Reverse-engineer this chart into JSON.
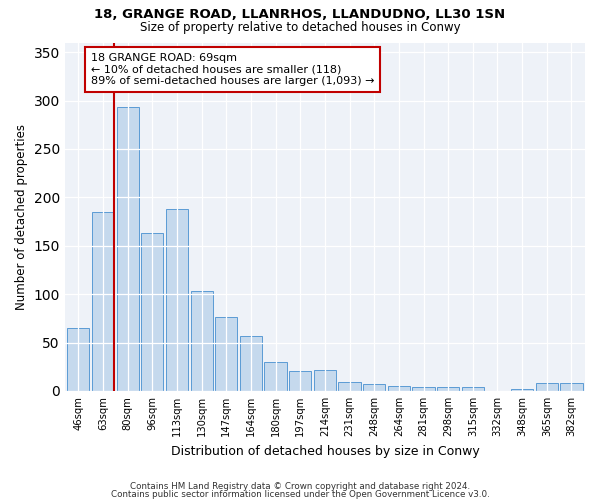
{
  "title1": "18, GRANGE ROAD, LLANRHOS, LLANDUDNO, LL30 1SN",
  "title2": "Size of property relative to detached houses in Conwy",
  "xlabel": "Distribution of detached houses by size in Conwy",
  "ylabel": "Number of detached properties",
  "categories": [
    "46sqm",
    "63sqm",
    "80sqm",
    "96sqm",
    "113sqm",
    "130sqm",
    "147sqm",
    "164sqm",
    "180sqm",
    "197sqm",
    "214sqm",
    "231sqm",
    "248sqm",
    "264sqm",
    "281sqm",
    "298sqm",
    "315sqm",
    "332sqm",
    "348sqm",
    "365sqm",
    "382sqm"
  ],
  "values": [
    65,
    185,
    293,
    163,
    188,
    103,
    76,
    57,
    30,
    21,
    22,
    9,
    7,
    5,
    4,
    4,
    4,
    0,
    2,
    8,
    8
  ],
  "bar_color": "#c5d9ed",
  "bar_edge_color": "#5b9bd5",
  "vline_color": "#c00000",
  "annotation_title": "18 GRANGE ROAD: 69sqm",
  "annotation_line1": "← 10% of detached houses are smaller (118)",
  "annotation_line2": "89% of semi-detached houses are larger (1,093) →",
  "annotation_box_edge": "#c00000",
  "ylim": [
    0,
    360
  ],
  "yticks": [
    0,
    50,
    100,
    150,
    200,
    250,
    300,
    350
  ],
  "footnote1": "Contains HM Land Registry data © Crown copyright and database right 2024.",
  "footnote2": "Contains public sector information licensed under the Open Government Licence v3.0.",
  "bg_color": "#eef2f8",
  "grid_color": "#ffffff"
}
